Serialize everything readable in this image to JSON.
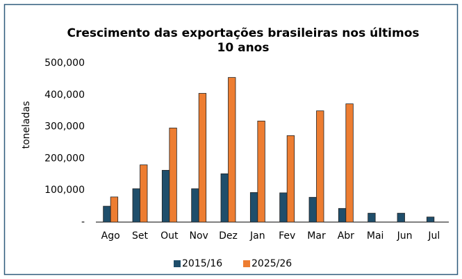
{
  "chart_data": {
    "type": "bar",
    "title": "Crescimento das exportações brasileiras nos últimos 10 anos",
    "y_label": "toneladas",
    "categories": [
      "Ago",
      "Set",
      "Out",
      "Nov",
      "Dez",
      "Jan",
      "Fev",
      "Mar",
      "Abr",
      "Mai",
      "Jun",
      "Jul"
    ],
    "series": [
      {
        "name": "2015/16",
        "color": "#1f4e6b",
        "values": [
          50000,
          105000,
          163000,
          105000,
          152000,
          93000,
          92000,
          78000,
          43000,
          28000,
          28000,
          16000
        ]
      },
      {
        "name": "2025/26",
        "color": "#ed7d31",
        "values": [
          79000,
          180000,
          296000,
          405000,
          455000,
          318000,
          272000,
          350000,
          372000,
          null,
          null,
          null
        ]
      }
    ],
    "ylim": [
      0,
      500000
    ],
    "yticks": [
      {
        "value": 0,
        "label": "-"
      },
      {
        "value": 100000,
        "label": "100,000"
      },
      {
        "value": 200000,
        "label": "200,000"
      },
      {
        "value": 300000,
        "label": "300,000"
      },
      {
        "value": 400000,
        "label": "400,000"
      },
      {
        "value": 500000,
        "label": "500,000"
      }
    ],
    "grid": false,
    "legend": "bottom"
  }
}
